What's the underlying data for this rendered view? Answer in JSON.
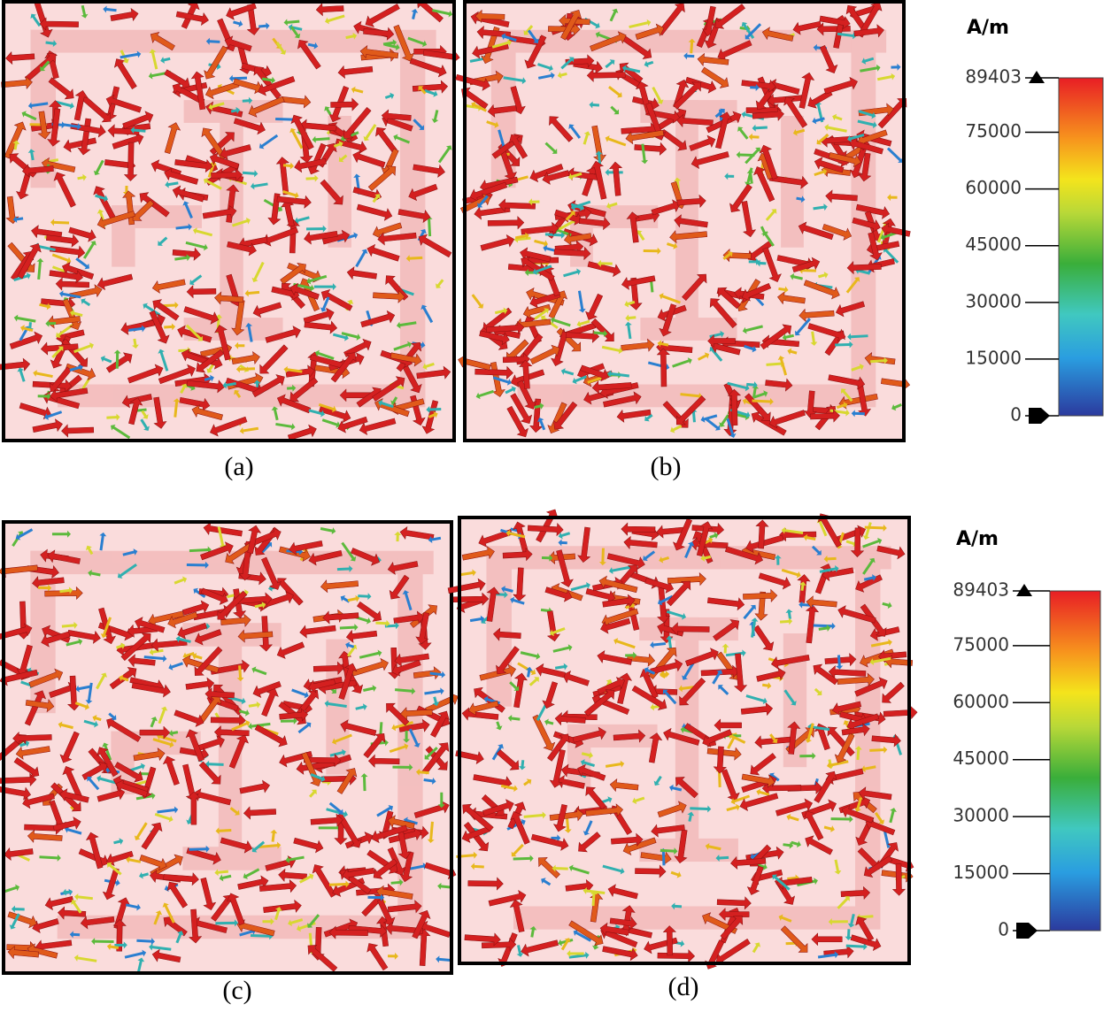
{
  "panels": [
    {
      "caption": "(a)"
    },
    {
      "caption": "(b)"
    },
    {
      "caption": "(c)"
    },
    {
      "caption": "(d)"
    }
  ],
  "colorbars": [
    {
      "unit": "A/m",
      "ticks": [
        89403,
        75000,
        60000,
        45000,
        30000,
        15000,
        0
      ]
    },
    {
      "unit": "A/m",
      "ticks": [
        89403,
        75000,
        60000,
        45000,
        30000,
        15000,
        0
      ]
    }
  ]
}
